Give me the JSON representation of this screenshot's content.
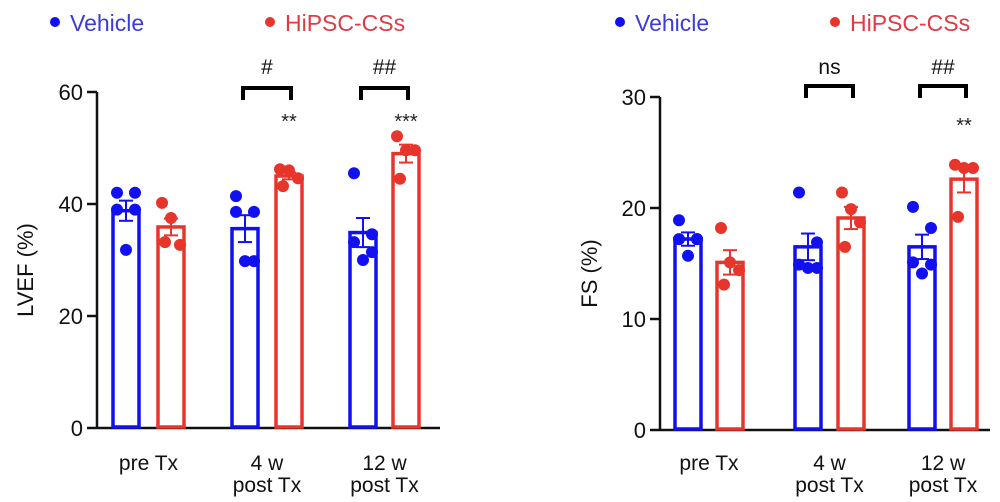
{
  "colors": {
    "vehicle": "#1010f0",
    "hipsc": "#e8352b",
    "vehicle_text": "#3b3bdc",
    "hipsc_text": "#e03a45",
    "axis": "#111111"
  },
  "chart_data": [
    {
      "type": "bar",
      "ylabel": "LVEF (%)",
      "ylim": [
        0,
        60
      ],
      "yticks": [
        "0",
        "20",
        "40",
        "60"
      ],
      "categories": [
        [
          "pre Tx"
        ],
        [
          "4 w",
          "post Tx"
        ],
        [
          "12 w",
          "post Tx"
        ]
      ],
      "legend": {
        "placement": "top",
        "entries": [
          "Vehicle",
          "HiPSC-CSs"
        ]
      },
      "series": [
        {
          "name": "Vehicle",
          "values": [
            38.8,
            35.6,
            34.9
          ],
          "sem": [
            1.8,
            2.4,
            2.6
          ],
          "points": [
            [
              42,
              42,
              39,
              39,
              31.8
            ],
            [
              41.4,
              38.6,
              38.6,
              29.8,
              29.8
            ],
            [
              45.5,
              34.6,
              33.2,
              31.4,
              30
            ]
          ]
        },
        {
          "name": "HiPSC-CSs",
          "values": [
            35.9,
            45.0,
            49.0
          ],
          "sem": [
            1.5,
            0.6,
            1.6
          ],
          "points": [
            [
              40.2,
              37.5,
              32.7,
              33.2
            ],
            [
              46.2,
              46,
              44.6,
              43.2
            ],
            [
              52.1,
              49.6,
              49.6,
              44.5
            ]
          ]
        }
      ],
      "annotations": {
        "between_groups": [
          "",
          "#",
          "##"
        ],
        "vs_vehicle": [
          "",
          "**",
          "***"
        ]
      }
    },
    {
      "type": "bar",
      "ylabel": "FS (%)",
      "ylim": [
        0,
        30
      ],
      "yticks": [
        "0",
        "10",
        "20",
        "30"
      ],
      "categories": [
        [
          "pre Tx"
        ],
        [
          "4 w",
          "post Tx"
        ],
        [
          "12 w",
          "post Tx"
        ]
      ],
      "legend": {
        "placement": "top",
        "entries": [
          "Vehicle",
          "HiPSC-CSs"
        ]
      },
      "series": [
        {
          "name": "Vehicle",
          "values": [
            17.2,
            16.5,
            16.5
          ],
          "sem": [
            0.6,
            1.2,
            1.1
          ],
          "points": [
            [
              18.9,
              17.2,
              17.2,
              17.2,
              15.7
            ],
            [
              21.4,
              16.9,
              14.9,
              14.6,
              14.6
            ],
            [
              20.1,
              18.2,
              15.1,
              14.9,
              14.1
            ]
          ]
        },
        {
          "name": "HiPSC-CSs",
          "values": [
            15.1,
            19.1,
            22.6
          ],
          "sem": [
            1.1,
            1.0,
            1.2
          ],
          "points": [
            [
              18.2,
              15.1,
              14.4,
              13.1
            ],
            [
              21.4,
              19.9,
              18.7,
              16.5
            ],
            [
              23.9,
              23.6,
              23.6,
              19.2
            ]
          ]
        }
      ],
      "annotations": {
        "between_groups": [
          "",
          "ns",
          "##"
        ],
        "vs_vehicle": [
          "",
          "",
          "**"
        ]
      }
    }
  ]
}
